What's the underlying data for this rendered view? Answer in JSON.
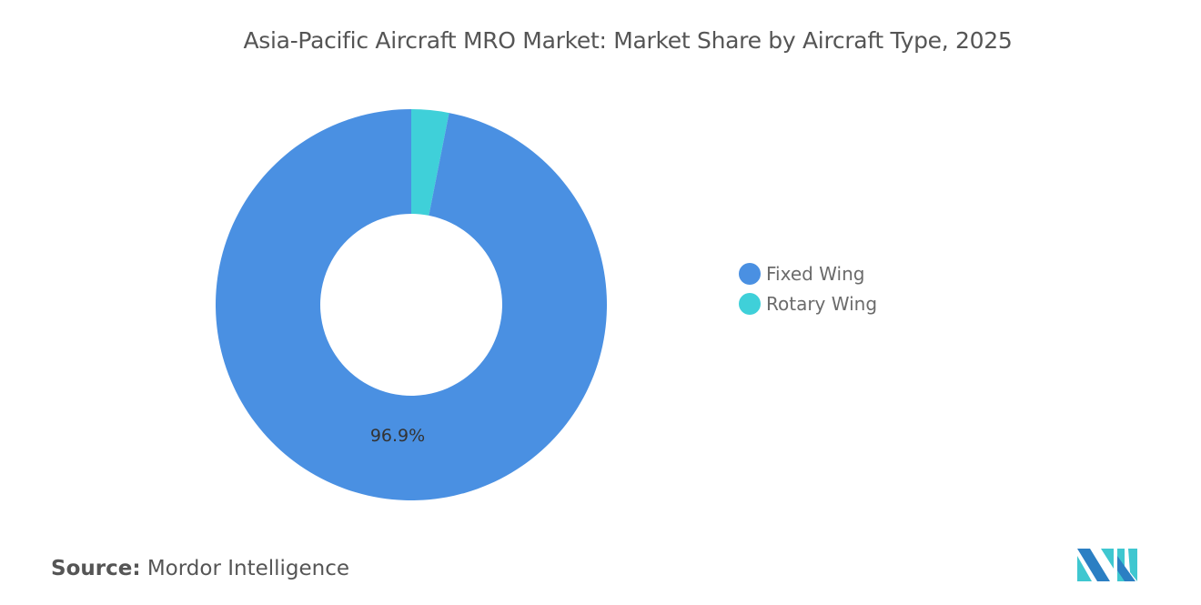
{
  "title": "Asia-Pacific Aircraft MRO Market: Market Share by Aircraft Type, 2025",
  "chart_data": {
    "type": "pie",
    "variant": "donut",
    "title": "Asia-Pacific Aircraft MRO Market: Market Share by Aircraft Type, 2025",
    "categories": [
      "Rotary Wing",
      "Fixed Wing"
    ],
    "values": [
      3.1,
      96.9
    ],
    "colors": [
      "#3fd0d9",
      "#4a90e2"
    ],
    "data_labels": {
      "Fixed Wing": "96.9%"
    },
    "legend": {
      "position": "right",
      "entries": [
        "Fixed Wing",
        "Rotary Wing"
      ],
      "colors": [
        "#4a90e2",
        "#3fd0d9"
      ]
    }
  },
  "source": {
    "label": "Source:",
    "text": "Mordor Intelligence"
  },
  "logo": {
    "name": "Mordor Intelligence logo",
    "colors": [
      "#2b7fc3",
      "#3fc7d0"
    ]
  }
}
